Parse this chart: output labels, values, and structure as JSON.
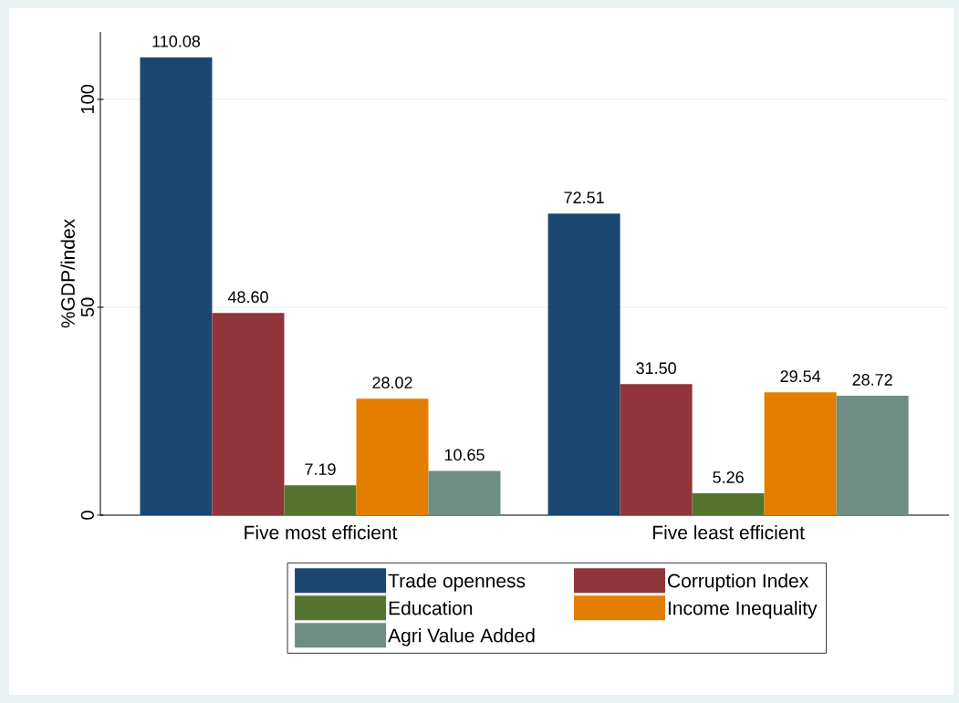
{
  "chart_data": {
    "type": "bar",
    "ylabel": "%GDP/index",
    "categories": [
      "Five most efficient",
      "Five least efficient"
    ],
    "series": [
      {
        "name": "Trade openness",
        "color": "#1a476f",
        "values": [
          110.08,
          72.51
        ],
        "value_labels": [
          "110.08",
          "72.51"
        ]
      },
      {
        "name": "Corruption Index",
        "color": "#90353b",
        "values": [
          48.6,
          31.5
        ],
        "value_labels": [
          "48.60",
          "31.50"
        ]
      },
      {
        "name": "Education",
        "color": "#55752f",
        "values": [
          7.19,
          5.26
        ],
        "value_labels": [
          "7.19",
          "5.26"
        ]
      },
      {
        "name": "Income Inequality",
        "color": "#e37e00",
        "values": [
          28.02,
          29.54
        ],
        "value_labels": [
          "28.02",
          "29.54"
        ]
      },
      {
        "name": "Agri Value Added",
        "color": "#6e8e84",
        "values": [
          10.65,
          28.72
        ],
        "value_labels": [
          "10.65",
          "28.72"
        ]
      }
    ],
    "ylim": [
      0,
      116.2
    ],
    "yticks": [
      0,
      50,
      100
    ],
    "grid": "y",
    "legend": "bottom"
  }
}
